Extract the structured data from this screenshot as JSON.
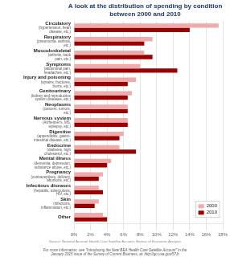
{
  "chart_data": {
    "type": "bar",
    "orientation": "horizontal",
    "title": "A look at the distribution of spending by condition\nbetween 2000 and 2010",
    "categories": [
      "Circulatory",
      "Respiratory",
      "Musculoskeletal",
      "Symptoms",
      "Injury and poisoning",
      "Genitourinary",
      "Neoplasms",
      "Nervous system",
      "Digestive",
      "Endocrine",
      "Mental illness",
      "Pregnancy",
      "Infectious diseases",
      "Skin",
      "Other"
    ],
    "sublabels": [
      "(hypertension, heart\ndisease, etc.)",
      "(pneumonia, asthma,\netc.)",
      "(arthritis, back\npain, etc.)",
      "(abdominal pain,\nheadaches, etc.)",
      "(sprains, fractures,\nburns, etc.)",
      "(kidney and reproductive\nsystem diseases, etc.)",
      "(cancers, tumors,\netc.)",
      "(Alzheimer's, MS,\nepilepsy, etc.)",
      "(appendicitis, gastro-\nintestinal disease, etc.)",
      "(diabetes, high\ncholesterol, etc.)",
      "(dementia, depression,\nsubstance abuse, etc.)",
      "(contraceptives, delivery,\nabortions, etc.)",
      "(hepatitis, tuberculosis,\nHIV, etc.)",
      "(infections,\ninflammation, etc.)",
      null
    ],
    "series": [
      {
        "name": "2000",
        "color": "#f0aaaa",
        "values": [
          17.5,
          9.5,
          8.5,
          8.0,
          7.5,
          7.0,
          6.5,
          6.5,
          6.0,
          5.5,
          4.5,
          3.5,
          3.0,
          3.0,
          3.5
        ]
      },
      {
        "name": "2010",
        "color": "#990000",
        "values": [
          14.0,
          8.5,
          9.5,
          12.5,
          6.5,
          6.5,
          6.5,
          6.5,
          5.5,
          7.5,
          4.0,
          3.0,
          3.5,
          2.5,
          4.0
        ]
      }
    ],
    "xlim": [
      0,
      18
    ],
    "xticks": [
      {
        "value": 0,
        "label": "0%"
      },
      {
        "value": 2,
        "label": "2%"
      },
      {
        "value": 4,
        "label": "4%"
      },
      {
        "value": 6,
        "label": "6%"
      },
      {
        "value": 8,
        "label": "8%"
      },
      {
        "value": 10,
        "label": "10%"
      },
      {
        "value": 12,
        "label": "12%"
      },
      {
        "value": 14,
        "label": "14%"
      },
      {
        "value": 16,
        "label": "16%"
      },
      {
        "value": 18,
        "label": "18%"
      }
    ],
    "grid": true,
    "legend": "lower right",
    "source": "Source: National Account Health Care Satellite Account, Bureau of Economic Analysis",
    "footer": "For more information, see \"Introducing the New BEA Health Care Satellite Account\" in the\nJanuary 2015 issue of the Survey of Current Business, at: http://go.usa.gov/57Jr"
  }
}
